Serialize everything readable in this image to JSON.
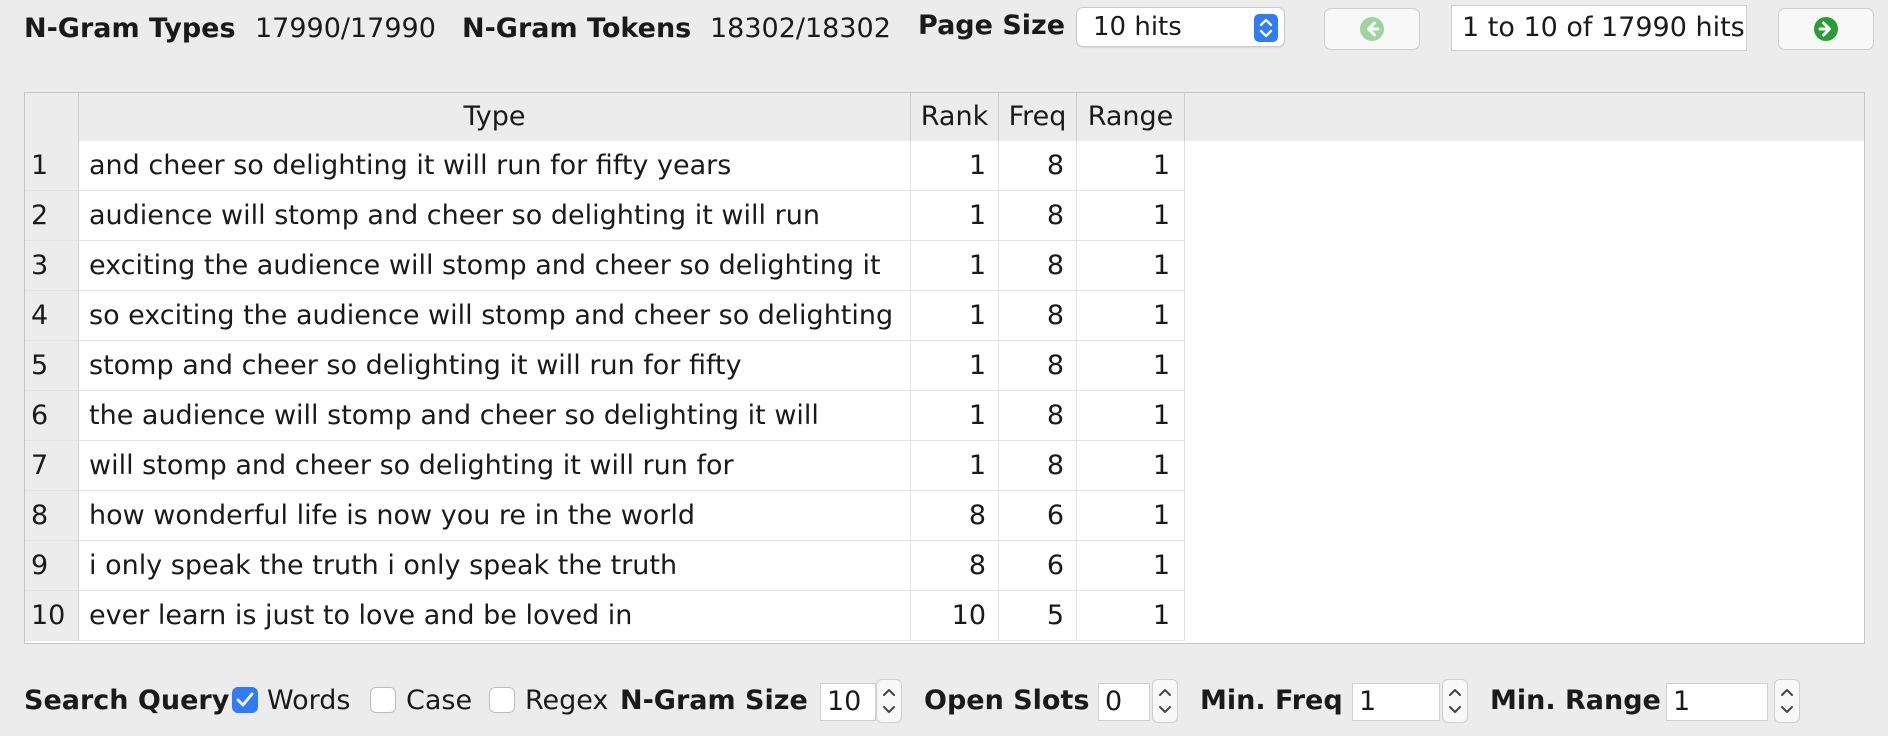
{
  "toolbar": {
    "ngram_types_label": "N-Gram Types",
    "ngram_types_value": "17990/17990",
    "ngram_tokens_label": "N-Gram Tokens",
    "ngram_tokens_value": "18302/18302",
    "page_size_label": "Page Size",
    "page_size_value": "10 hits",
    "hits_text": "1 to 10 of 17990 hits",
    "prev_icon": "arrow-left-circle-icon",
    "next_icon": "arrow-right-circle-icon",
    "colors": {
      "accent": "#2f7cf6",
      "next_green": "#2a9d36",
      "prev_green": "#9fd3a0"
    }
  },
  "table": {
    "columns": [
      "Type",
      "Rank",
      "Freq",
      "Range"
    ],
    "rows": [
      {
        "num": "1",
        "type": "and cheer so delighting it will run for fifty years",
        "rank": "1",
        "freq": "8",
        "range": "1"
      },
      {
        "num": "2",
        "type": "audience will stomp and cheer so delighting it will run",
        "rank": "1",
        "freq": "8",
        "range": "1"
      },
      {
        "num": "3",
        "type": "exciting the audience will stomp and cheer so delighting it",
        "rank": "1",
        "freq": "8",
        "range": "1"
      },
      {
        "num": "4",
        "type": "so exciting the audience will stomp and cheer so delighting",
        "rank": "1",
        "freq": "8",
        "range": "1"
      },
      {
        "num": "5",
        "type": "stomp and cheer so delighting it will run for fifty",
        "rank": "1",
        "freq": "8",
        "range": "1"
      },
      {
        "num": "6",
        "type": "the audience will stomp and cheer so delighting it will",
        "rank": "1",
        "freq": "8",
        "range": "1"
      },
      {
        "num": "7",
        "type": "will stomp and cheer so delighting it will run for",
        "rank": "1",
        "freq": "8",
        "range": "1"
      },
      {
        "num": "8",
        "type": "how wonderful life is now you re in the world",
        "rank": "8",
        "freq": "6",
        "range": "1"
      },
      {
        "num": "9",
        "type": "i only speak the truth i only speak the truth",
        "rank": "8",
        "freq": "6",
        "range": "1"
      },
      {
        "num": "10",
        "type": "ever learn is just to love and be loved in",
        "rank": "10",
        "freq": "5",
        "range": "1"
      }
    ]
  },
  "search": {
    "query_label": "Search Query",
    "words_label": "Words",
    "words_checked": true,
    "case_label": "Case",
    "case_checked": false,
    "regex_label": "Regex",
    "regex_checked": false,
    "ngram_size_label": "N-Gram Size",
    "ngram_size_value": "10",
    "open_slots_label": "Open Slots",
    "open_slots_value": "0",
    "min_freq_label": "Min. Freq",
    "min_freq_value": "1",
    "min_range_label": "Min. Range",
    "min_range_value": "1"
  }
}
